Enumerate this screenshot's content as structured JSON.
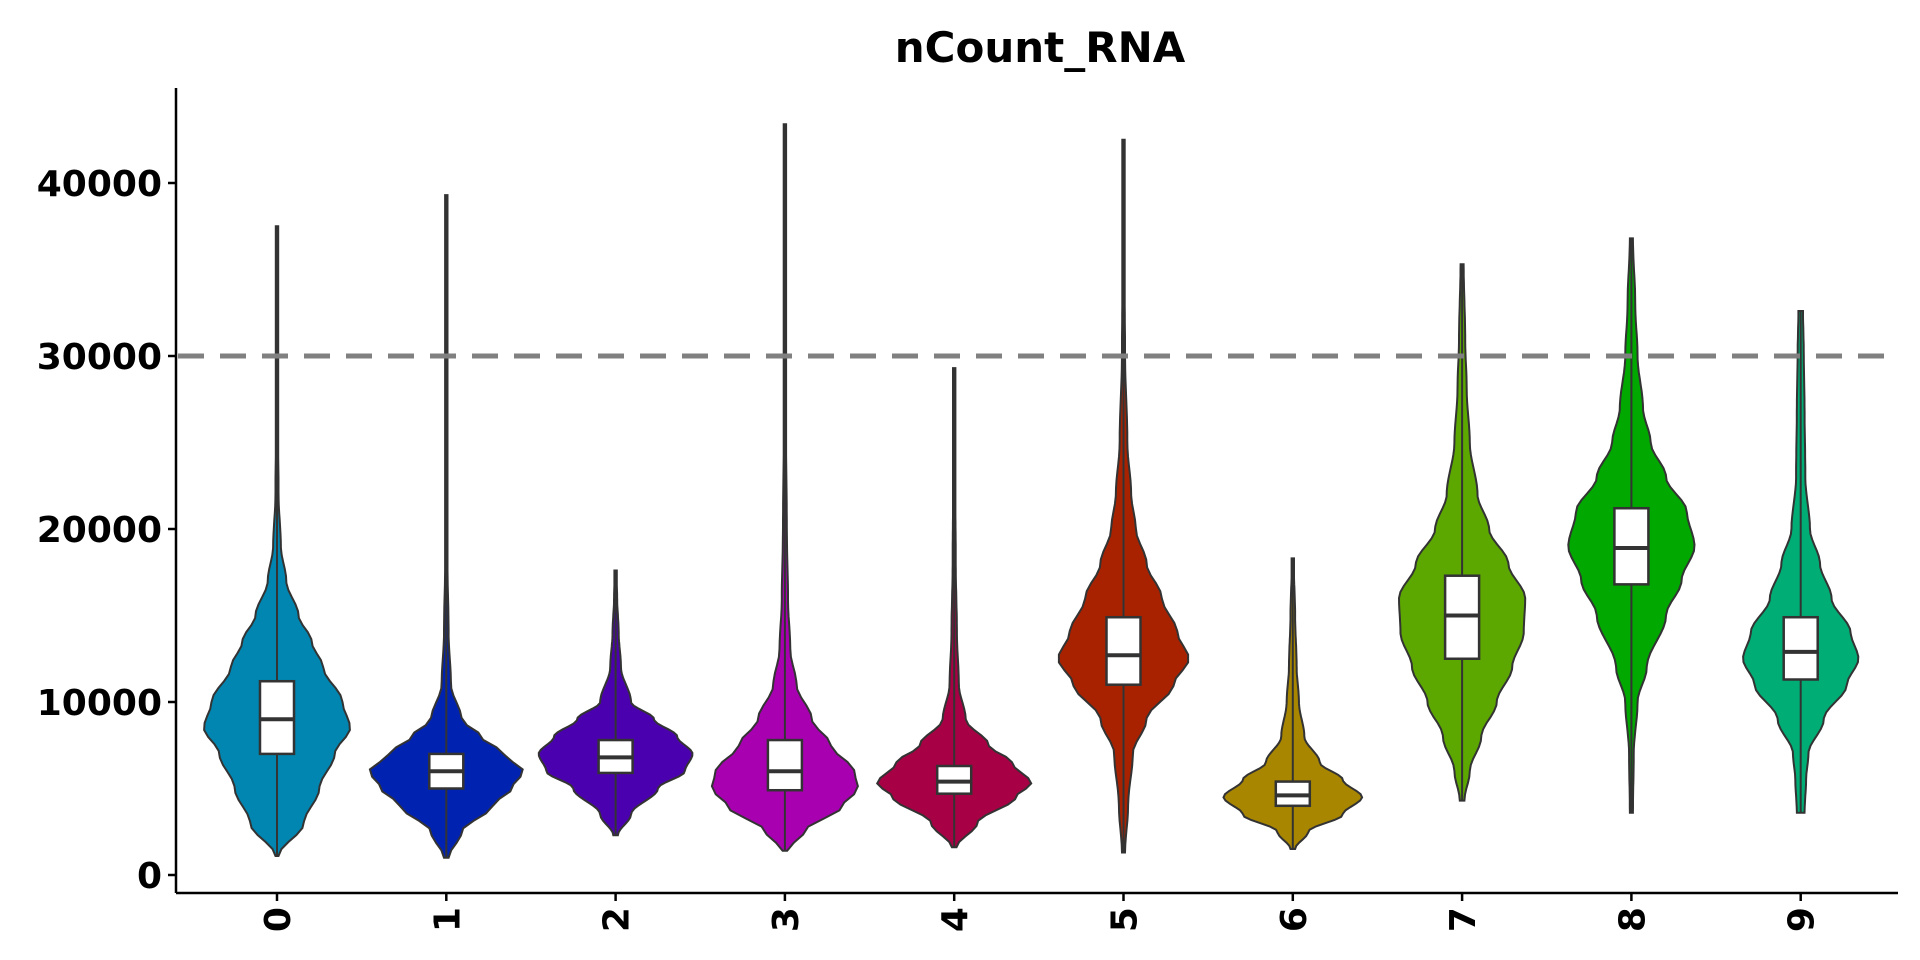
{
  "chart_data": {
    "type": "violin",
    "title": "nCount_RNA",
    "xlabel": "",
    "ylabel": "",
    "ylim": [
      0,
      45000
    ],
    "yticks": [
      0,
      10000,
      20000,
      30000,
      40000
    ],
    "ytick_labels": [
      "0",
      "10000",
      "20000",
      "30000",
      "40000"
    ],
    "grid": false,
    "legend": "none",
    "reference_line": {
      "y": 30000,
      "style": "dashed",
      "color": "#808080"
    },
    "categories": [
      "0",
      "1",
      "2",
      "3",
      "4",
      "5",
      "6",
      "7",
      "8",
      "9"
    ],
    "series": [
      {
        "category": "0",
        "color": "#0086B0",
        "min": 1100,
        "q1": 7000,
        "median": 9000,
        "q3": 11200,
        "max": 37500,
        "density": [
          [
            1100,
            0.02
          ],
          [
            3000,
            0.35
          ],
          [
            5000,
            0.55
          ],
          [
            7000,
            0.75
          ],
          [
            8500,
            0.95
          ],
          [
            10000,
            0.85
          ],
          [
            12000,
            0.6
          ],
          [
            13500,
            0.45
          ],
          [
            15000,
            0.28
          ],
          [
            17000,
            0.12
          ],
          [
            19000,
            0.05
          ],
          [
            22000,
            0.02
          ],
          [
            26000,
            0.012
          ],
          [
            30000,
            0.008
          ],
          [
            34000,
            0.005
          ],
          [
            37500,
            0.003
          ]
        ]
      },
      {
        "category": "1",
        "color": "#0022B0",
        "min": 1000,
        "q1": 5000,
        "median": 6000,
        "q3": 7000,
        "max": 39300,
        "density": [
          [
            1000,
            0.03
          ],
          [
            2500,
            0.2
          ],
          [
            4000,
            0.6
          ],
          [
            5000,
            0.85
          ],
          [
            6000,
            1.0
          ],
          [
            7000,
            0.75
          ],
          [
            8000,
            0.45
          ],
          [
            9000,
            0.2
          ],
          [
            11000,
            0.06
          ],
          [
            14000,
            0.03
          ],
          [
            18000,
            0.015
          ],
          [
            24000,
            0.01
          ],
          [
            30000,
            0.006
          ],
          [
            35000,
            0.004
          ],
          [
            39300,
            0.003
          ]
        ]
      },
      {
        "category": "2",
        "color": "#4B00B0",
        "min": 2300,
        "q1": 5900,
        "median": 6800,
        "q3": 7800,
        "max": 17600,
        "density": [
          [
            2300,
            0.03
          ],
          [
            3500,
            0.2
          ],
          [
            5000,
            0.55
          ],
          [
            6000,
            0.9
          ],
          [
            7000,
            1.0
          ],
          [
            8000,
            0.8
          ],
          [
            9000,
            0.5
          ],
          [
            10000,
            0.2
          ],
          [
            12000,
            0.07
          ],
          [
            14000,
            0.04
          ],
          [
            16000,
            0.02
          ],
          [
            17600,
            0.01
          ]
        ]
      },
      {
        "category": "3",
        "color": "#A800B0",
        "min": 1400,
        "q1": 4900,
        "median": 6000,
        "q3": 7800,
        "max": 43400,
        "density": [
          [
            1400,
            0.03
          ],
          [
            2500,
            0.25
          ],
          [
            4000,
            0.75
          ],
          [
            5000,
            0.95
          ],
          [
            6000,
            0.9
          ],
          [
            7500,
            0.6
          ],
          [
            9000,
            0.35
          ],
          [
            11000,
            0.15
          ],
          [
            13000,
            0.07
          ],
          [
            16000,
            0.04
          ],
          [
            20000,
            0.025
          ],
          [
            25000,
            0.015
          ],
          [
            30000,
            0.01
          ],
          [
            36000,
            0.006
          ],
          [
            43400,
            0.003
          ]
        ]
      },
      {
        "category": "4",
        "color": "#A80044",
        "min": 1600,
        "q1": 4700,
        "median": 5400,
        "q3": 6300,
        "max": 29300,
        "density": [
          [
            1600,
            0.03
          ],
          [
            3000,
            0.3
          ],
          [
            4500,
            0.8
          ],
          [
            5300,
            1.0
          ],
          [
            6500,
            0.75
          ],
          [
            7500,
            0.45
          ],
          [
            9000,
            0.15
          ],
          [
            11000,
            0.06
          ],
          [
            14000,
            0.035
          ],
          [
            18000,
            0.02
          ],
          [
            23000,
            0.012
          ],
          [
            29300,
            0.005
          ]
        ]
      },
      {
        "category": "5",
        "color": "#A82200",
        "min": 1300,
        "q1": 11000,
        "median": 12700,
        "q3": 14900,
        "max": 42500,
        "density": [
          [
            1300,
            0.02
          ],
          [
            4000,
            0.06
          ],
          [
            7000,
            0.12
          ],
          [
            9000,
            0.3
          ],
          [
            11000,
            0.65
          ],
          [
            12500,
            0.85
          ],
          [
            14000,
            0.7
          ],
          [
            16000,
            0.5
          ],
          [
            18000,
            0.3
          ],
          [
            20000,
            0.16
          ],
          [
            22000,
            0.1
          ],
          [
            25000,
            0.05
          ],
          [
            30000,
            0.02
          ],
          [
            36000,
            0.01
          ],
          [
            42500,
            0.004
          ]
        ]
      },
      {
        "category": "6",
        "color": "#A88600",
        "min": 1500,
        "q1": 4000,
        "median": 4600,
        "q3": 5400,
        "max": 18300,
        "density": [
          [
            1500,
            0.03
          ],
          [
            2500,
            0.2
          ],
          [
            3500,
            0.65
          ],
          [
            4500,
            0.9
          ],
          [
            5500,
            0.65
          ],
          [
            6500,
            0.35
          ],
          [
            8000,
            0.15
          ],
          [
            10000,
            0.08
          ],
          [
            12000,
            0.05
          ],
          [
            15000,
            0.03
          ],
          [
            18300,
            0.01
          ]
        ]
      },
      {
        "category": "7",
        "color": "#5CA800",
        "min": 4300,
        "q1": 12500,
        "median": 15000,
        "q3": 17300,
        "max": 35300,
        "density": [
          [
            4300,
            0.03
          ],
          [
            6000,
            0.1
          ],
          [
            8000,
            0.25
          ],
          [
            10000,
            0.45
          ],
          [
            12000,
            0.65
          ],
          [
            14000,
            0.8
          ],
          [
            16000,
            0.82
          ],
          [
            18000,
            0.6
          ],
          [
            20000,
            0.35
          ],
          [
            22000,
            0.2
          ],
          [
            25000,
            0.1
          ],
          [
            28000,
            0.06
          ],
          [
            31000,
            0.04
          ],
          [
            35300,
            0.02
          ]
        ]
      },
      {
        "category": "8",
        "color": "#00A800",
        "min": 3600,
        "q1": 16800,
        "median": 18900,
        "q3": 21200,
        "max": 36800,
        "density": [
          [
            3600,
            0.02
          ],
          [
            7000,
            0.03
          ],
          [
            10000,
            0.08
          ],
          [
            12000,
            0.2
          ],
          [
            15000,
            0.45
          ],
          [
            17000,
            0.65
          ],
          [
            19000,
            0.82
          ],
          [
            21000,
            0.72
          ],
          [
            23000,
            0.45
          ],
          [
            25000,
            0.25
          ],
          [
            27000,
            0.15
          ],
          [
            30000,
            0.08
          ],
          [
            33000,
            0.05
          ],
          [
            36800,
            0.02
          ]
        ]
      },
      {
        "category": "9",
        "color": "#00AD75",
        "min": 3600,
        "q1": 11300,
        "median": 12900,
        "q3": 14900,
        "max": 32600,
        "density": [
          [
            3600,
            0.05
          ],
          [
            5500,
            0.07
          ],
          [
            7000,
            0.1
          ],
          [
            9000,
            0.3
          ],
          [
            11000,
            0.6
          ],
          [
            12500,
            0.75
          ],
          [
            14000,
            0.65
          ],
          [
            16000,
            0.4
          ],
          [
            18000,
            0.25
          ],
          [
            20000,
            0.12
          ],
          [
            23000,
            0.06
          ],
          [
            27000,
            0.05
          ],
          [
            30000,
            0.04
          ],
          [
            32600,
            0.03
          ]
        ]
      }
    ]
  }
}
